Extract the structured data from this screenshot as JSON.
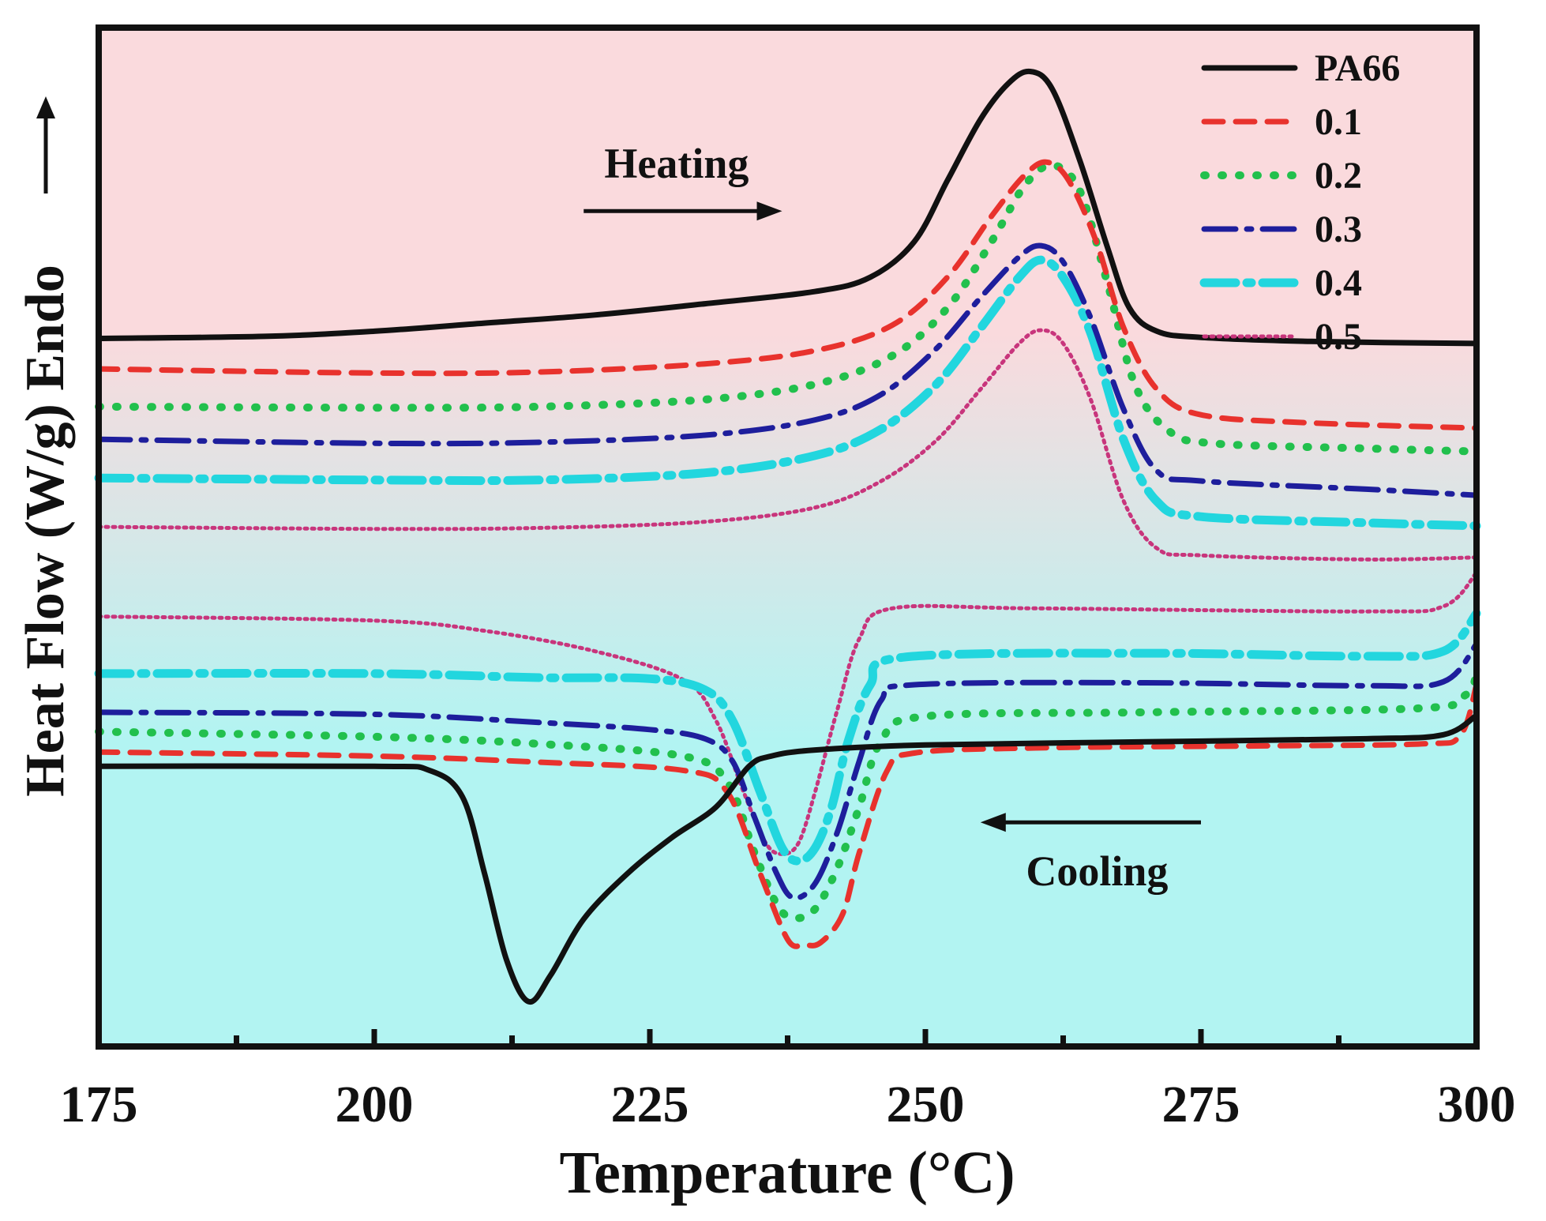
{
  "chart_data": {
    "type": "line",
    "title": "",
    "xlabel": "Temperature (°C)",
    "ylabel": "Heat Flow (W/g)",
    "ylabel_note": "Endo",
    "xlim": [
      175,
      300
    ],
    "ylim": [
      0,
      100
    ],
    "x_ticks": [
      175,
      200,
      225,
      250,
      275,
      300
    ],
    "x_minor_ticks": [
      187.5,
      212.5,
      237.5,
      262.5,
      287.5
    ],
    "legend": "top-right",
    "background": {
      "top": "#fadadd",
      "bottom": "#b2f4f2"
    },
    "annotations": [
      {
        "id": "heating",
        "text": "Heating",
        "arrow_from_x": 219,
        "arrow_to_x": 237,
        "arrow_y": 82,
        "direction": "right"
      },
      {
        "id": "cooling",
        "text": "Cooling",
        "arrow_from_x": 275,
        "arrow_to_x": 255,
        "arrow_y": 22,
        "direction": "left"
      }
    ],
    "series": [
      {
        "name": "PA66",
        "color": "#111111",
        "dash": "",
        "width": 7,
        "heating": [
          [
            175,
            69.5
          ],
          [
            190,
            69.7
          ],
          [
            200,
            70.2
          ],
          [
            210,
            71
          ],
          [
            220,
            71.8
          ],
          [
            230,
            72.9
          ],
          [
            240,
            74.1
          ],
          [
            245,
            75.5
          ],
          [
            249,
            79
          ],
          [
            252,
            85
          ],
          [
            255,
            91
          ],
          [
            257.5,
            94.5
          ],
          [
            259.5,
            95.7
          ],
          [
            261.5,
            94
          ],
          [
            264,
            87
          ],
          [
            266.5,
            78.5
          ],
          [
            268.5,
            72.5
          ],
          [
            271,
            70.2
          ],
          [
            275,
            69.6
          ],
          [
            285,
            69.2
          ],
          [
            300,
            69
          ]
        ],
        "cooling": [
          [
            175,
            27.5
          ],
          [
            200,
            27.5
          ],
          [
            205,
            27.1
          ],
          [
            208,
            24.5
          ],
          [
            210,
            17
          ],
          [
            212,
            8.5
          ],
          [
            214,
            4.4
          ],
          [
            216,
            7
          ],
          [
            219,
            12.5
          ],
          [
            223,
            17
          ],
          [
            227,
            20.5
          ],
          [
            231,
            23.5
          ],
          [
            234,
            27.5
          ],
          [
            236,
            28.5
          ],
          [
            240,
            29.1
          ],
          [
            250,
            29.6
          ],
          [
            270,
            29.9
          ],
          [
            290,
            30.2
          ],
          [
            297,
            30.6
          ],
          [
            300,
            32.5
          ]
        ]
      },
      {
        "name": "0.1",
        "color": "#e8322d",
        "dash": "24 16",
        "width": 7,
        "heating": [
          [
            175,
            66.5
          ],
          [
            200,
            66.1
          ],
          [
            215,
            66.2
          ],
          [
            230,
            67
          ],
          [
            240,
            68.3
          ],
          [
            247,
            70.8
          ],
          [
            252,
            75.5
          ],
          [
            256,
            81.5
          ],
          [
            259,
            85.5
          ],
          [
            261,
            86.8
          ],
          [
            263,
            85
          ],
          [
            265.5,
            79
          ],
          [
            268,
            70.5
          ],
          [
            271,
            64.5
          ],
          [
            275,
            62
          ],
          [
            285,
            61.2
          ],
          [
            300,
            60.7
          ]
        ],
        "cooling": [
          [
            175,
            28.9
          ],
          [
            200,
            28.5
          ],
          [
            215,
            27.9
          ],
          [
            228,
            27.1
          ],
          [
            232,
            25
          ],
          [
            235,
            17
          ],
          [
            237.5,
            10.5
          ],
          [
            239,
            10
          ],
          [
            240.5,
            10.2
          ],
          [
            242.5,
            13
          ],
          [
            244,
            19
          ],
          [
            246.5,
            27
          ],
          [
            249,
            28.8
          ],
          [
            260,
            29.3
          ],
          [
            280,
            29.5
          ],
          [
            295,
            29.7
          ],
          [
            298.5,
            30.5
          ],
          [
            300,
            35.5
          ]
        ]
      },
      {
        "name": "0.2",
        "color": "#22c04d",
        "dash": "2 20",
        "width": 10,
        "heating": [
          [
            175,
            62.8
          ],
          [
            200,
            62.7
          ],
          [
            215,
            62.8
          ],
          [
            230,
            63.5
          ],
          [
            240,
            65
          ],
          [
            247,
            67.8
          ],
          [
            252,
            72.5
          ],
          [
            256,
            79
          ],
          [
            259,
            84.5
          ],
          [
            261.5,
            86.5
          ],
          [
            264,
            84
          ],
          [
            266.5,
            75
          ],
          [
            269,
            65
          ],
          [
            272,
            60.5
          ],
          [
            276,
            59.2
          ],
          [
            290,
            58.7
          ],
          [
            300,
            58.4
          ]
        ],
        "cooling": [
          [
            175,
            30.9
          ],
          [
            200,
            30.4
          ],
          [
            215,
            29.7
          ],
          [
            228,
            28.5
          ],
          [
            232,
            26
          ],
          [
            234.5,
            19
          ],
          [
            236.5,
            14
          ],
          [
            238,
            12.6
          ],
          [
            240,
            13.5
          ],
          [
            242,
            17.5
          ],
          [
            244,
            23.5
          ],
          [
            246,
            30
          ],
          [
            250,
            32.4
          ],
          [
            270,
            32.8
          ],
          [
            295,
            33.2
          ],
          [
            299,
            34.5
          ],
          [
            300,
            36.5
          ]
        ]
      },
      {
        "name": "0.3",
        "color": "#1e1e9c",
        "dash": "40 14 6 14",
        "width": 7,
        "heating": [
          [
            175,
            59.6
          ],
          [
            200,
            59.2
          ],
          [
            215,
            59.3
          ],
          [
            230,
            60
          ],
          [
            240,
            61.5
          ],
          [
            246,
            64
          ],
          [
            251,
            68.5
          ],
          [
            255,
            73.5
          ],
          [
            258.5,
            77.5
          ],
          [
            260.5,
            78.6
          ],
          [
            262.5,
            77
          ],
          [
            265,
            71.5
          ],
          [
            268,
            62.5
          ],
          [
            271,
            56.5
          ],
          [
            275,
            55.5
          ],
          [
            290,
            54.7
          ],
          [
            300,
            54.1
          ]
        ],
        "cooling": [
          [
            175,
            32.8
          ],
          [
            200,
            32.6
          ],
          [
            215,
            31.8
          ],
          [
            225,
            31.1
          ],
          [
            230,
            30.2
          ],
          [
            232.5,
            28
          ],
          [
            234.5,
            22.5
          ],
          [
            236.5,
            17
          ],
          [
            238,
            14.6
          ],
          [
            240,
            16
          ],
          [
            242,
            21
          ],
          [
            244,
            28
          ],
          [
            246,
            34
          ],
          [
            249,
            35.5
          ],
          [
            270,
            35.7
          ],
          [
            290,
            35.4
          ],
          [
            297,
            35.8
          ],
          [
            300,
            39.5
          ]
        ]
      },
      {
        "name": "0.4",
        "color": "#22d6de",
        "dash": "40 14 6 14",
        "width": 11,
        "heating": [
          [
            175,
            55.8
          ],
          [
            200,
            55.6
          ],
          [
            215,
            55.6
          ],
          [
            230,
            56.3
          ],
          [
            240,
            58
          ],
          [
            246,
            60.6
          ],
          [
            251,
            65
          ],
          [
            255,
            70.5
          ],
          [
            258.5,
            75.5
          ],
          [
            260.5,
            77.2
          ],
          [
            262.5,
            75.5
          ],
          [
            265,
            70
          ],
          [
            268,
            59.5
          ],
          [
            271,
            53.5
          ],
          [
            275,
            52
          ],
          [
            290,
            51.4
          ],
          [
            300,
            51.1
          ]
        ],
        "cooling": [
          [
            175,
            36.6
          ],
          [
            200,
            36.6
          ],
          [
            215,
            36.2
          ],
          [
            225,
            36.1
          ],
          [
            230,
            35
          ],
          [
            232.5,
            32
          ],
          [
            235,
            25
          ],
          [
            237,
            19.5
          ],
          [
            238.5,
            18.2
          ],
          [
            240,
            19.5
          ],
          [
            241.5,
            23.5
          ],
          [
            243,
            30
          ],
          [
            245,
            35.5
          ],
          [
            248,
            38.2
          ],
          [
            270,
            38.6
          ],
          [
            290,
            38.3
          ],
          [
            297,
            38.8
          ],
          [
            300,
            42.5
          ]
        ]
      },
      {
        "name": "0.5",
        "color": "#c8357c",
        "dash": "3 6",
        "width": 5,
        "heating": [
          [
            175,
            51
          ],
          [
            200,
            50.8
          ],
          [
            215,
            50.9
          ],
          [
            230,
            51.5
          ],
          [
            240,
            52.9
          ],
          [
            246,
            55.5
          ],
          [
            251,
            59.5
          ],
          [
            255,
            64.5
          ],
          [
            258.5,
            69
          ],
          [
            260.5,
            70.3
          ],
          [
            262.5,
            69
          ],
          [
            265,
            63.5
          ],
          [
            268,
            53.5
          ],
          [
            271,
            48.9
          ],
          [
            275,
            48.2
          ],
          [
            290,
            47.8
          ],
          [
            300,
            48
          ]
        ],
        "cooling": [
          [
            175,
            42.2
          ],
          [
            200,
            41.8
          ],
          [
            210,
            40.8
          ],
          [
            220,
            38.8
          ],
          [
            228,
            36
          ],
          [
            231,
            32
          ],
          [
            233.5,
            25
          ],
          [
            235.5,
            20
          ],
          [
            237,
            18.9
          ],
          [
            238.5,
            20
          ],
          [
            240,
            25
          ],
          [
            242,
            33
          ],
          [
            244,
            40
          ],
          [
            247,
            43
          ],
          [
            260,
            43
          ],
          [
            290,
            42.7
          ],
          [
            297,
            43.2
          ],
          [
            300,
            46.5
          ]
        ]
      }
    ]
  }
}
